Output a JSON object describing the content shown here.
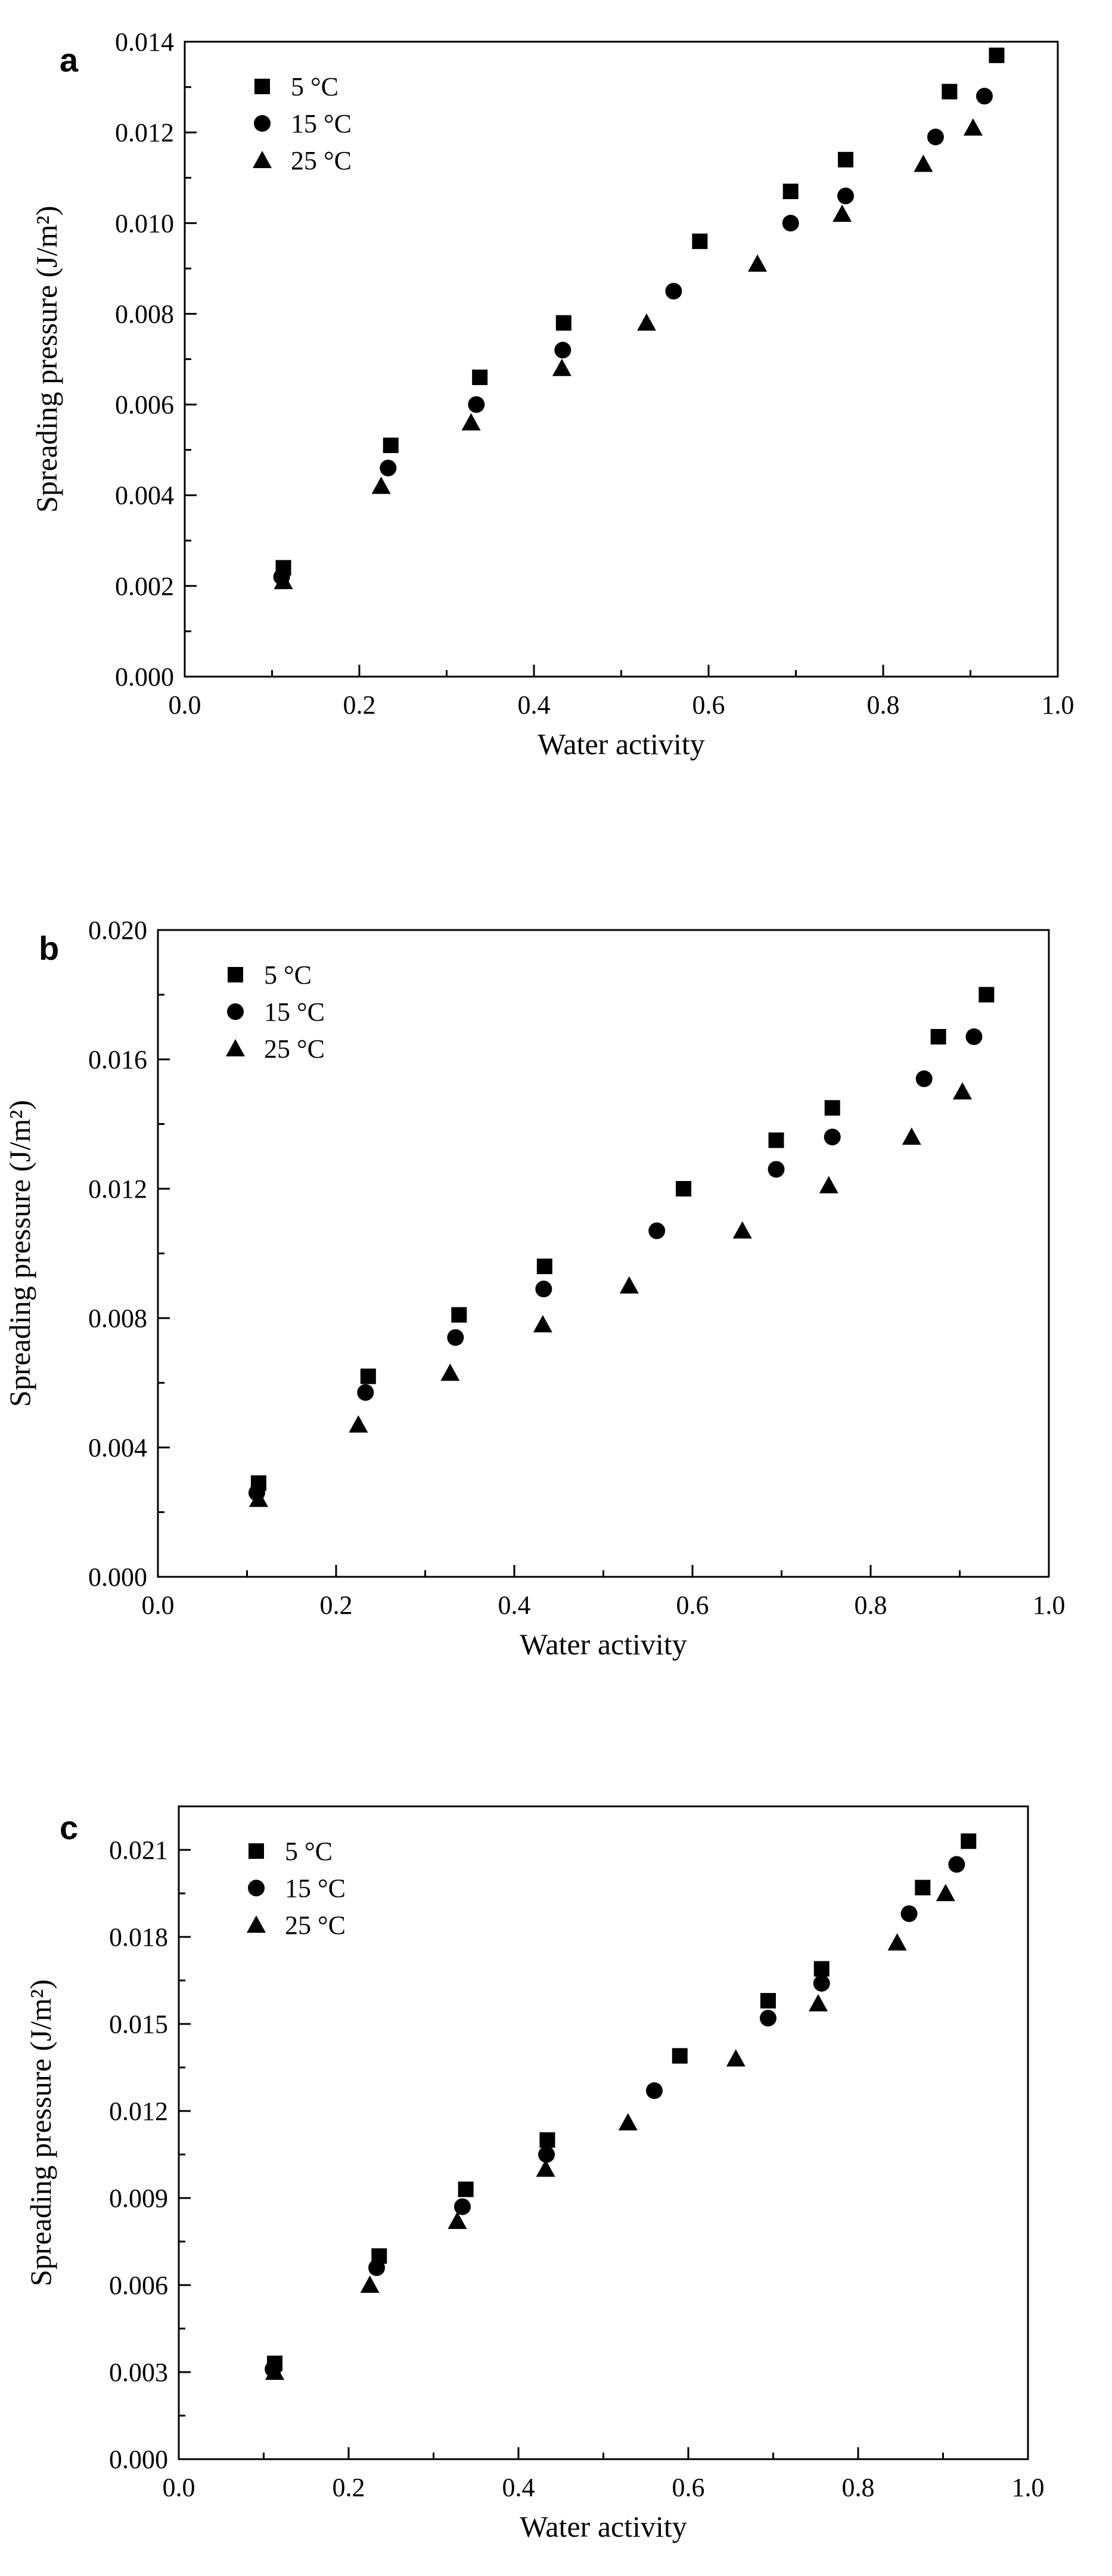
{
  "chart_data": [
    {
      "type": "scatter",
      "panel_label": "a",
      "xlabel": "Water activity",
      "ylabel": "Spreading pressure (J/m²)",
      "xlim": [
        0.0,
        1.0
      ],
      "ylim": [
        0.0,
        0.014
      ],
      "xticks": [
        "0.0",
        "0.2",
        "0.4",
        "0.6",
        "0.8",
        "1.0"
      ],
      "yticks": [
        "0.000",
        "0.002",
        "0.004",
        "0.006",
        "0.008",
        "0.010",
        "0.012",
        "0.014"
      ],
      "legend_position": "top-left",
      "series": [
        {
          "name": "5 °C",
          "marker": "square",
          "x": [
            0.113,
            0.236,
            0.338,
            0.434,
            0.59,
            0.694,
            0.757,
            0.876,
            0.93
          ],
          "y": [
            0.0024,
            0.0051,
            0.0066,
            0.0078,
            0.0096,
            0.0107,
            0.0114,
            0.0129,
            0.0137
          ]
        },
        {
          "name": "15 °C",
          "marker": "circle",
          "x": [
            0.111,
            0.233,
            0.334,
            0.433,
            0.56,
            0.694,
            0.757,
            0.86,
            0.916
          ],
          "y": [
            0.0022,
            0.0046,
            0.006,
            0.0072,
            0.0085,
            0.01,
            0.0106,
            0.0119,
            0.0128
          ]
        },
        {
          "name": "25 °C",
          "marker": "triangle",
          "x": [
            0.113,
            0.225,
            0.328,
            0.432,
            0.529,
            0.656,
            0.753,
            0.846,
            0.903
          ],
          "y": [
            0.0021,
            0.0042,
            0.0056,
            0.0068,
            0.0078,
            0.0091,
            0.0102,
            0.0113,
            0.0121
          ]
        }
      ]
    },
    {
      "type": "scatter",
      "panel_label": "b",
      "xlabel": "Water activity",
      "ylabel": "Spreading pressure (J/m²)",
      "xlim": [
        0.0,
        1.0
      ],
      "ylim": [
        0.0,
        0.02
      ],
      "xticks": [
        "0.0",
        "0.2",
        "0.4",
        "0.6",
        "0.8",
        "1.0"
      ],
      "yticks": [
        "0.000",
        "0.004",
        "0.008",
        "0.012",
        "0.016",
        "0.020"
      ],
      "legend_position": "top-left",
      "series": [
        {
          "name": "5 °C",
          "marker": "square",
          "x": [
            0.113,
            0.236,
            0.338,
            0.434,
            0.59,
            0.694,
            0.757,
            0.876,
            0.93
          ],
          "y": [
            0.0029,
            0.0062,
            0.0081,
            0.0096,
            0.012,
            0.0135,
            0.0145,
            0.0167,
            0.018
          ]
        },
        {
          "name": "15 °C",
          "marker": "circle",
          "x": [
            0.111,
            0.233,
            0.334,
            0.433,
            0.56,
            0.694,
            0.757,
            0.86,
            0.916
          ],
          "y": [
            0.0026,
            0.0057,
            0.0074,
            0.0089,
            0.0107,
            0.0126,
            0.0136,
            0.0154,
            0.0167
          ]
        },
        {
          "name": "25 °C",
          "marker": "triangle",
          "x": [
            0.113,
            0.225,
            0.328,
            0.432,
            0.529,
            0.656,
            0.753,
            0.846,
            0.903
          ],
          "y": [
            0.0024,
            0.0047,
            0.0063,
            0.0078,
            0.009,
            0.0107,
            0.0121,
            0.0136,
            0.015
          ]
        }
      ]
    },
    {
      "type": "scatter",
      "panel_label": "c",
      "xlabel": "Water activity",
      "ylabel": "Spreading pressure (J/m²)",
      "xlim": [
        0.0,
        1.0
      ],
      "ylim": [
        0.0,
        0.0225
      ],
      "xticks": [
        "0.0",
        "0.2",
        "0.4",
        "0.6",
        "0.8",
        "1.0"
      ],
      "yticks": [
        "0.000",
        "0.003",
        "0.006",
        "0.009",
        "0.012",
        "0.015",
        "0.018",
        "0.021"
      ],
      "legend_position": "top-left",
      "series": [
        {
          "name": "5 °C",
          "marker": "square",
          "x": [
            0.113,
            0.236,
            0.338,
            0.434,
            0.59,
            0.694,
            0.757,
            0.876,
            0.93
          ],
          "y": [
            0.0033,
            0.007,
            0.0093,
            0.011,
            0.0139,
            0.0158,
            0.0169,
            0.0197,
            0.0213
          ]
        },
        {
          "name": "15 °C",
          "marker": "circle",
          "x": [
            0.111,
            0.233,
            0.334,
            0.433,
            0.56,
            0.694,
            0.757,
            0.86,
            0.916
          ],
          "y": [
            0.0031,
            0.0066,
            0.0087,
            0.0105,
            0.0127,
            0.0152,
            0.0164,
            0.0188,
            0.0205
          ]
        },
        {
          "name": "25 °C",
          "marker": "triangle",
          "x": [
            0.113,
            0.225,
            0.328,
            0.432,
            0.529,
            0.656,
            0.753,
            0.846,
            0.903
          ],
          "y": [
            0.003,
            0.006,
            0.0082,
            0.01,
            0.0116,
            0.0138,
            0.0157,
            0.0178,
            0.0195
          ]
        }
      ]
    }
  ]
}
